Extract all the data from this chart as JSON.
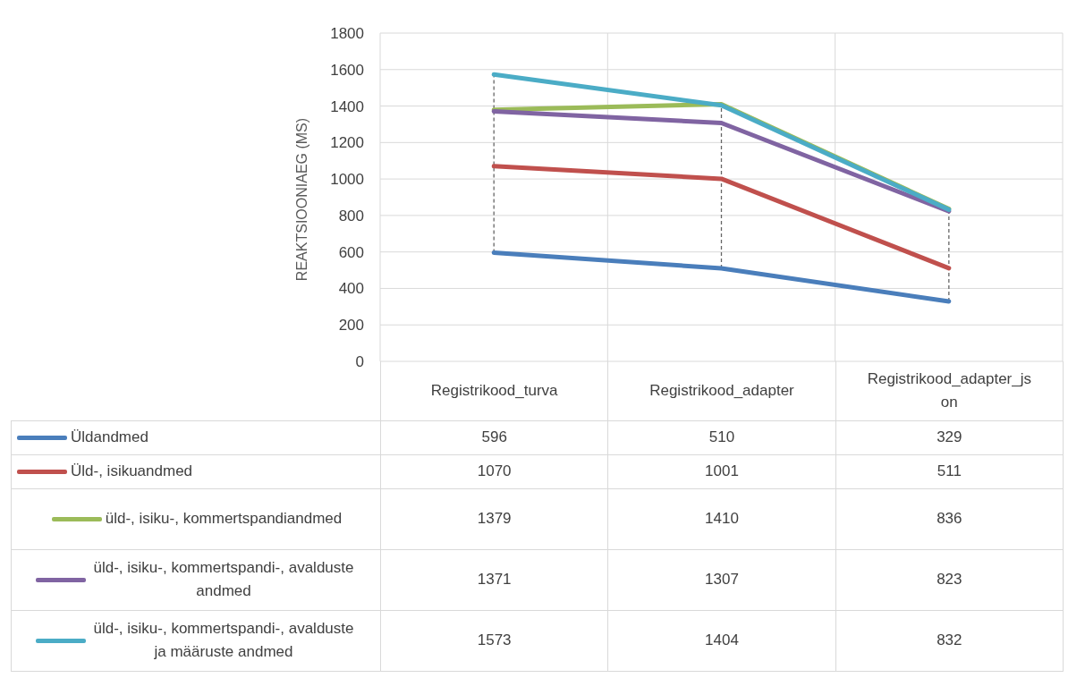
{
  "chart_data": {
    "type": "line",
    "ylabel": "REAKTSIOONIAEG (MS)",
    "categories": [
      "Registrikood_turva",
      "Registrikood_adapter",
      "Registrikood_adapter_json"
    ],
    "series": [
      {
        "name": "Üldandmed",
        "color": "#4a7ebb",
        "values": [
          596,
          510,
          329
        ]
      },
      {
        "name": "Üld-, isikuandmed",
        "color": "#c0504d",
        "values": [
          1070,
          1001,
          511
        ]
      },
      {
        "name": "üld-, isiku-, kommertspandiandmed",
        "color": "#9bbb59",
        "values": [
          1379,
          1410,
          836
        ]
      },
      {
        "name": "üld-, isiku-, kommertspandi-, avalduste andmed",
        "color": "#8064a2",
        "values": [
          1371,
          1307,
          823
        ]
      },
      {
        "name": "üld-, isiku-, kommertspandi-, avalduste ja määruste andmed",
        "color": "#4bacc6",
        "values": [
          1573,
          1404,
          832
        ]
      }
    ],
    "ylim": [
      0,
      1800
    ],
    "yticks": [
      0,
      200,
      400,
      600,
      800,
      1000,
      1200,
      1400,
      1600,
      1800
    ],
    "grid": true,
    "legend": "bottom",
    "data_labels": true,
    "marker": "none",
    "line_style": "solid"
  }
}
